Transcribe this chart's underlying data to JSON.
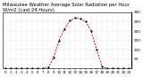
{
  "title": "Milwaukee Weather Average Solar Radiation per Hour W/m2 (Last 24 Hours)",
  "hours": [
    0,
    1,
    2,
    3,
    4,
    5,
    6,
    7,
    8,
    9,
    10,
    11,
    12,
    13,
    14,
    15,
    16,
    17,
    18,
    19,
    20,
    21,
    22,
    23
  ],
  "values": [
    0,
    0,
    0,
    0,
    0,
    0,
    0,
    0,
    5,
    60,
    150,
    210,
    255,
    270,
    265,
    250,
    200,
    100,
    10,
    0,
    0,
    0,
    0,
    0
  ],
  "line_color": "#dd0000",
  "marker_color": "#000000",
  "grid_color": "#bbbbbb",
  "grid_style": ":",
  "bg_color": "#ffffff",
  "ylim": [
    0,
    300
  ],
  "xlim": [
    -0.5,
    23.5
  ],
  "ytick_values": [
    50,
    100,
    150,
    200,
    250,
    300
  ],
  "title_fontsize": 3.8,
  "tick_fontsize": 3.0,
  "linewidth": 0.7,
  "markersize": 1.2
}
